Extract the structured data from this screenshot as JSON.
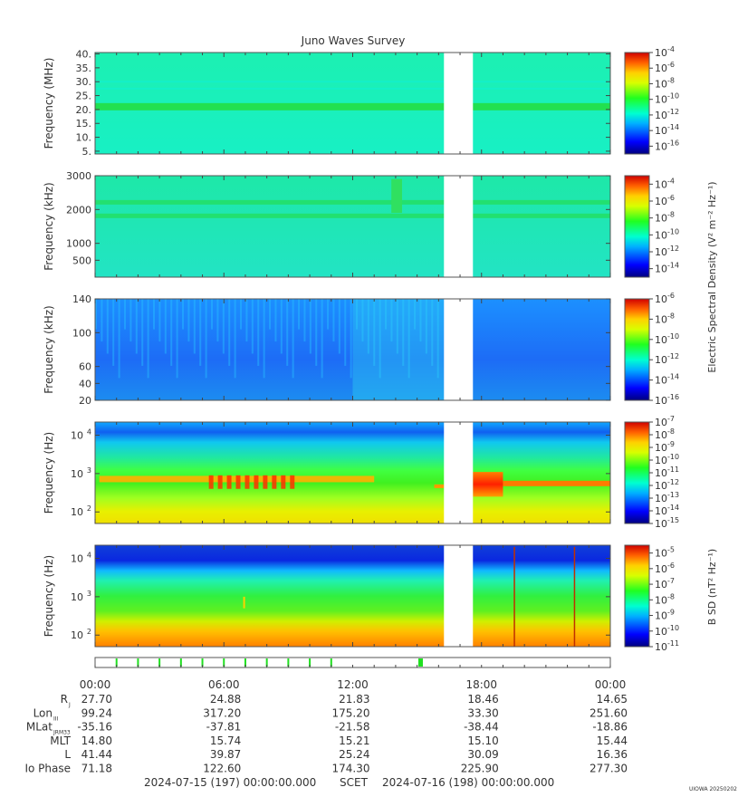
{
  "title": "Juno Waves Survey",
  "footer": {
    "start": "2024-07-15 (197) 00:00:00.000",
    "frame": "SCET",
    "end": "2024-07-16 (198) 00:00:00.000",
    "stamp": "UIOWA 20250202"
  },
  "colorbar_labels": {
    "electric": "Electric Spectral Density (V² m⁻² Hz⁻¹)",
    "magnetic": "B SD (nT² Hz⁻¹)"
  },
  "ephemeris": {
    "time_labels": [
      "00:00",
      "06:00",
      "12:00",
      "18:00",
      "00:00"
    ],
    "rows": [
      {
        "label": "R",
        "sub": "J",
        "values": [
          "27.70",
          "24.88",
          "21.83",
          "18.46",
          "14.65"
        ]
      },
      {
        "label": "Lon",
        "sub": "III",
        "values": [
          "99.24",
          "317.20",
          "175.20",
          "33.30",
          "251.60"
        ]
      },
      {
        "label": "MLat",
        "sub": "JRM33",
        "values": [
          "-35.16",
          "-37.81",
          "-21.58",
          "-38.44",
          "-18.86"
        ]
      },
      {
        "label": "MLT",
        "sub": "",
        "values": [
          "14.80",
          "15.74",
          "15.21",
          "15.10",
          "15.44"
        ]
      },
      {
        "label": "L",
        "sub": "",
        "values": [
          "41.44",
          "39.87",
          "25.24",
          "30.09",
          "16.36"
        ]
      },
      {
        "label": "Io Phase",
        "sub": "",
        "values": [
          "71.18",
          "122.60",
          "174.30",
          "225.90",
          "277.30"
        ]
      }
    ]
  },
  "chart_data": [
    {
      "type": "heatmap",
      "ylabel": "Frequency (MHz)",
      "yscale": "linear",
      "ylim": [
        4,
        40.5
      ],
      "yticks": [
        5,
        10,
        15,
        20,
        25,
        30,
        35,
        40
      ],
      "ytick_labels": [
        "5.",
        "10.",
        "15.",
        "20.",
        "25.",
        "30.",
        "35.",
        "40."
      ],
      "x_hours": [
        0,
        24
      ],
      "data_gap_hours": [
        16.25,
        17.6
      ],
      "colorbar": {
        "min_exp": -17,
        "max_exp": -4,
        "tick_exps": [
          -16,
          -14,
          -12,
          -10,
          -8,
          -6,
          -4
        ]
      }
    },
    {
      "type": "heatmap",
      "ylabel": "Frequency (kHz)",
      "yscale": "linear",
      "ylim": [
        0,
        3000
      ],
      "yticks": [
        500,
        1000,
        2000,
        3000
      ],
      "ytick_labels": [
        "500",
        "1000",
        "2000",
        "3000"
      ],
      "x_hours": [
        0,
        24
      ],
      "data_gap_hours": [
        16.25,
        17.6
      ],
      "colorbar": {
        "min_exp": -15,
        "max_exp": -3,
        "tick_exps": [
          -14,
          -12,
          -10,
          -8,
          -6,
          -4
        ]
      }
    },
    {
      "type": "heatmap",
      "ylabel": "Frequency (kHz)",
      "yscale": "linear",
      "ylim": [
        20,
        140
      ],
      "yticks": [
        20,
        40,
        60,
        100,
        140
      ],
      "ytick_labels": [
        "20",
        "40",
        "60",
        "100",
        "140"
      ],
      "x_hours": [
        0,
        24
      ],
      "data_gap_hours": [
        16.25,
        17.6
      ],
      "colorbar": {
        "min_exp": -16,
        "max_exp": -6,
        "tick_exps": [
          -16,
          -14,
          -12,
          -10,
          -8,
          -6
        ]
      }
    },
    {
      "type": "heatmap",
      "ylabel": "Frequency (Hz)",
      "yscale": "log",
      "ylim": [
        50,
        22000
      ],
      "yticks": [
        100,
        1000,
        10000
      ],
      "ytick_labels": [
        "10",
        "10",
        "10"
      ],
      "ytick_exps": [
        "2",
        "3",
        "4"
      ],
      "x_hours": [
        0,
        24
      ],
      "data_gap_hours": [
        16.25,
        17.6
      ],
      "colorbar": {
        "min_exp": -15,
        "max_exp": -7,
        "tick_exps": [
          -15,
          -14,
          -13,
          -12,
          -11,
          -10,
          -9,
          -8,
          -7
        ]
      }
    },
    {
      "type": "heatmap",
      "ylabel": "Frequency (Hz)",
      "yscale": "log",
      "ylim": [
        50,
        22000
      ],
      "yticks": [
        100,
        1000,
        10000
      ],
      "ytick_labels": [
        "10",
        "10",
        "10"
      ],
      "ytick_exps": [
        "2",
        "3",
        "4"
      ],
      "x_hours": [
        0,
        24
      ],
      "data_gap_hours": [
        16.25,
        17.6
      ],
      "colorbar": {
        "min_exp": -11,
        "max_exp": -4.5,
        "tick_exps": [
          -11,
          -10,
          -9,
          -8,
          -7,
          -6,
          -5
        ]
      }
    }
  ],
  "timeline": {
    "green_marks_hours": [
      1.0,
      2.0,
      3.0,
      4.0,
      5.0,
      6.0,
      7.0,
      8.0,
      9.0,
      10.0,
      11.0,
      15.1
    ]
  }
}
